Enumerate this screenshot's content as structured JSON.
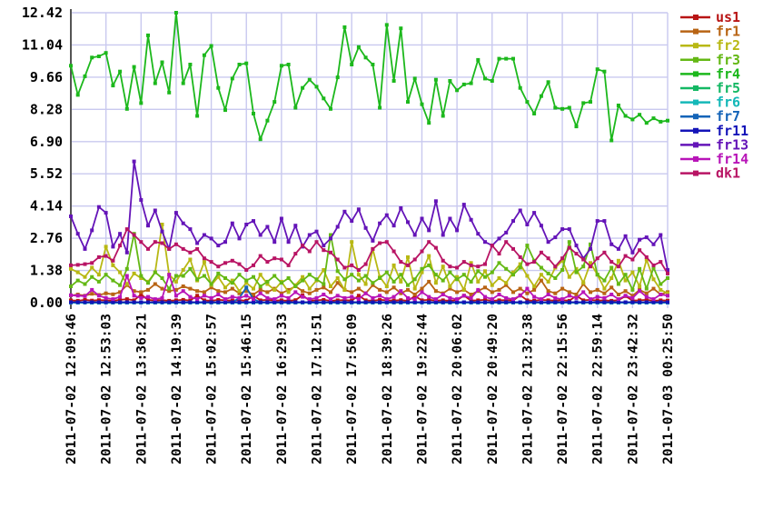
{
  "style": {
    "background": "#ffffff",
    "grid_color": "#c9c9ef",
    "axis_color": "#555555",
    "tick_label_color": "#000000"
  },
  "chart_data": {
    "type": "line",
    "title": "",
    "xlabel": "",
    "ylabel": "",
    "grid": true,
    "legend_position": "right",
    "ylim": [
      0,
      12.42
    ],
    "y_tick_labels": [
      "0.00",
      "1.38",
      "2.76",
      "4.14",
      "5.52",
      "6.90",
      "8.28",
      "9.66",
      "11.04",
      "12.42"
    ],
    "y_ticks": [
      0.0,
      1.38,
      2.76,
      4.14,
      5.52,
      6.9,
      8.28,
      9.66,
      11.04,
      12.42
    ],
    "points_per_series": 86,
    "tick_every_n_points": 5,
    "x_tick_labels": [
      "2011-07-02 12:09:46",
      "2011-07-02 12:53:03",
      "2011-07-02 13:36:21",
      "2011-07-02 14:19:39",
      "2011-07-02 15:02:57",
      "2011-07-02 15:46:15",
      "2011-07-02 16:29:33",
      "2011-07-02 17:12:51",
      "2011-07-02 17:56:09",
      "2011-07-02 18:39:26",
      "2011-07-02 19:22:44",
      "2011-07-02 20:06:02",
      "2011-07-02 20:49:20",
      "2011-07-02 21:32:38",
      "2011-07-02 22:15:56",
      "2011-07-02 22:59:14",
      "2011-07-02 23:42:32",
      "2011-07-03 00:25:50"
    ],
    "series": [
      {
        "name": "us1",
        "color": "#b81414",
        "values": [
          0.1,
          0.08,
          0.12,
          0.09,
          0.11,
          0.1,
          0.08,
          0.12,
          0.15,
          0.1,
          0.35,
          0.12,
          0.09,
          0.11,
          0.08,
          0.1,
          0.12,
          0.09,
          0.3,
          0.1,
          0.08,
          0.12,
          0.1,
          0.09,
          0.11,
          0.08,
          0.3,
          0.1,
          0.12,
          0.09,
          0.1,
          0.08,
          0.11,
          0.32,
          0.09,
          0.1,
          0.12,
          0.08,
          0.1,
          0.11,
          0.09,
          0.3,
          0.1,
          0.08,
          0.12,
          0.1,
          0.09,
          0.11,
          0.08,
          0.28,
          0.1,
          0.12,
          0.09,
          0.1,
          0.08,
          0.11,
          0.3,
          0.09,
          0.1,
          0.12,
          0.08,
          0.1,
          0.11,
          0.09,
          0.32,
          0.1,
          0.08,
          0.12,
          0.1,
          0.09,
          0.11,
          0.08,
          0.3,
          0.1,
          0.12,
          0.09,
          0.1,
          0.08,
          0.11,
          0.28,
          0.09,
          0.1,
          0.12,
          0.08,
          0.1,
          0.09
        ]
      },
      {
        "name": "fr1",
        "color": "#b86414",
        "values": [
          0.31,
          0.35,
          0.3,
          0.38,
          0.33,
          0.4,
          0.36,
          0.45,
          0.75,
          0.5,
          0.45,
          0.55,
          0.8,
          0.6,
          0.5,
          0.55,
          0.7,
          0.6,
          0.5,
          0.45,
          0.65,
          0.5,
          0.45,
          0.6,
          0.4,
          0.5,
          0.35,
          0.55,
          0.45,
          0.6,
          0.4,
          0.55,
          0.7,
          0.5,
          0.4,
          0.55,
          0.65,
          0.45,
          0.85,
          0.55,
          0.45,
          0.6,
          0.4,
          0.75,
          0.55,
          0.45,
          0.65,
          0.4,
          0.55,
          0.35,
          0.6,
          0.9,
          0.5,
          0.4,
          0.6,
          0.45,
          0.55,
          0.35,
          0.5,
          0.65,
          0.45,
          0.55,
          0.75,
          0.45,
          0.6,
          0.4,
          0.55,
          0.95,
          0.5,
          0.4,
          0.6,
          0.45,
          0.35,
          0.8,
          0.45,
          0.55,
          0.4,
          0.65,
          0.35,
          0.5,
          0.3,
          0.55,
          0.4,
          0.6,
          0.35,
          0.45
        ]
      },
      {
        "name": "fr2",
        "color": "#b8b814",
        "values": [
          1.45,
          1.3,
          1.1,
          1.5,
          1.2,
          2.4,
          1.6,
          1.3,
          0.8,
          1.25,
          1.05,
          0.9,
          1.3,
          3.35,
          1.2,
          0.9,
          1.4,
          1.85,
          0.95,
          1.75,
          0.75,
          1.1,
          0.65,
          0.95,
          0.5,
          0.85,
          0.6,
          1.2,
          0.8,
          0.55,
          0.9,
          0.45,
          0.75,
          1.1,
          0.6,
          0.95,
          1.4,
          0.7,
          1.05,
          0.55,
          2.6,
          1.2,
          0.8,
          2.3,
          1.1,
          0.7,
          1.6,
          0.9,
          1.95,
          0.6,
          1.3,
          2.0,
          0.85,
          1.55,
          0.7,
          1.1,
          0.55,
          1.7,
          0.9,
          1.35,
          0.75,
          1.05,
          0.85,
          1.3,
          1.65,
          1.15,
          0.7,
          1.2,
          0.9,
          1.5,
          1.8,
          1.1,
          1.45,
          0.85,
          1.7,
          1.2,
          0.6,
          1.05,
          1.8,
          0.95,
          1.3,
          0.7,
          1.85,
          1.0,
          0.55,
          0.4
        ]
      },
      {
        "name": "fr3",
        "color": "#64b814",
        "values": [
          0.7,
          0.95,
          0.8,
          1.1,
          0.9,
          1.2,
          0.95,
          0.75,
          1.45,
          2.95,
          1.15,
          0.85,
          1.3,
          1.05,
          0.6,
          1.15,
          1.15,
          1.45,
          1.0,
          1.15,
          0.8,
          1.25,
          1.05,
          0.85,
          1.2,
          0.95,
          1.1,
          0.7,
          0.9,
          1.15,
          0.85,
          1.05,
          0.7,
          0.95,
          1.2,
          1.0,
          0.8,
          2.9,
          1.35,
          1.0,
          1.2,
          0.95,
          1.15,
          0.85,
          1.05,
          1.3,
          0.9,
          1.2,
          0.75,
          1.0,
          1.45,
          1.6,
          1.2,
          0.95,
          1.3,
          1.0,
          1.2,
          0.9,
          1.35,
          1.1,
          1.3,
          1.7,
          1.45,
          1.2,
          1.5,
          2.45,
          1.8,
          1.5,
          1.25,
          1.05,
          1.4,
          2.6,
          1.3,
          1.55,
          2.5,
          1.2,
          0.95,
          1.5,
          0.8,
          1.2,
          0.55,
          1.45,
          0.6,
          1.5,
          0.8,
          1.05
        ]
      },
      {
        "name": "fr4",
        "color": "#1cb81c",
        "values": [
          10.15,
          8.9,
          9.7,
          10.5,
          10.55,
          10.7,
          9.3,
          9.9,
          8.3,
          10.1,
          8.55,
          11.45,
          9.4,
          10.3,
          9.0,
          12.42,
          9.4,
          10.2,
          8.0,
          10.6,
          11.0,
          9.2,
          8.25,
          9.6,
          10.2,
          10.25,
          8.1,
          7.0,
          7.8,
          8.6,
          10.15,
          10.2,
          8.35,
          9.2,
          9.55,
          9.25,
          8.75,
          8.3,
          9.65,
          11.8,
          10.2,
          10.95,
          10.5,
          10.2,
          8.35,
          11.9,
          9.5,
          11.75,
          8.6,
          9.6,
          8.5,
          7.7,
          9.55,
          8.0,
          9.5,
          9.1,
          9.35,
          9.4,
          10.4,
          9.6,
          9.5,
          10.45,
          10.45,
          10.45,
          9.2,
          8.6,
          8.1,
          8.85,
          9.45,
          8.35,
          8.3,
          8.35,
          7.55,
          8.55,
          8.6,
          10.0,
          9.9,
          6.95,
          8.45,
          8.0,
          7.85,
          8.05,
          7.7,
          7.9,
          7.75,
          7.8
        ]
      },
      {
        "name": "fr5",
        "color": "#14b864",
        "values": [
          0.0,
          0.0,
          0.0,
          0.0,
          0.0,
          0.0,
          0.0,
          0.0,
          0.0,
          0.0,
          0.0,
          0.0,
          0.0,
          0.0,
          0.0,
          0.0,
          0.0,
          0.0,
          0.0,
          0.0,
          0.0,
          0.0,
          0.0,
          0.0,
          0.0,
          0.0,
          0.0,
          0.0,
          0.0,
          0.0,
          0.0,
          0.0,
          0.0,
          0.0,
          0.0,
          0.0,
          0.0,
          0.0,
          0.0,
          0.0,
          0.0,
          0.0,
          0.0,
          0.0,
          0.0,
          0.0,
          0.0,
          0.0,
          0.0,
          0.0,
          0.0,
          0.0,
          0.0,
          0.0,
          0.0,
          0.0,
          0.0,
          0.0,
          0.0,
          0.0,
          0.0,
          0.0,
          0.0,
          0.0,
          0.0,
          0.0,
          0.0,
          0.0,
          0.0,
          0.0,
          0.0,
          0.0,
          0.0,
          0.0,
          0.0,
          0.0,
          0.0,
          0.0,
          0.0,
          0.0,
          0.0,
          0.0,
          0.0,
          0.0,
          0.0,
          0.0
        ]
      },
      {
        "name": "fr6",
        "color": "#14b8b8",
        "values": [
          0.0,
          0.0,
          0.0,
          0.0,
          0.0,
          0.0,
          0.0,
          0.0,
          0.0,
          0.0,
          0.0,
          0.0,
          0.0,
          0.0,
          0.0,
          0.0,
          0.0,
          0.0,
          0.0,
          0.0,
          0.0,
          0.0,
          0.0,
          0.0,
          0.0,
          0.0,
          0.0,
          0.0,
          0.0,
          0.0,
          0.0,
          0.0,
          0.0,
          0.0,
          0.0,
          0.0,
          0.0,
          0.0,
          0.0,
          0.0,
          0.0,
          0.0,
          0.0,
          0.0,
          0.0,
          0.0,
          0.0,
          0.0,
          0.0,
          0.0,
          0.0,
          0.0,
          0.0,
          0.0,
          0.0,
          0.0,
          0.0,
          0.0,
          0.0,
          0.0,
          0.0,
          0.0,
          0.0,
          0.0,
          0.0,
          0.0,
          0.0,
          0.0,
          0.0,
          0.0,
          0.0,
          0.0,
          0.0,
          0.0,
          0.0,
          0.0,
          0.0,
          0.0,
          0.0,
          0.0,
          0.0,
          0.0,
          0.0,
          0.0,
          0.0,
          0.0
        ]
      },
      {
        "name": "fr7",
        "color": "#1464b8",
        "values": [
          0.02,
          0.02,
          0.02,
          0.02,
          0.02,
          0.02,
          0.02,
          0.02,
          0.02,
          0.02,
          0.02,
          0.02,
          0.02,
          0.02,
          0.02,
          0.02,
          0.02,
          0.02,
          0.02,
          0.02,
          0.02,
          0.02,
          0.02,
          0.02,
          0.2,
          0.65,
          0.15,
          0.02,
          0.02,
          0.02,
          0.02,
          0.02,
          0.02,
          0.02,
          0.02,
          0.02,
          0.02,
          0.02,
          0.02,
          0.02,
          0.02,
          0.02,
          0.02,
          0.02,
          0.02,
          0.02,
          0.02,
          0.02,
          0.02,
          0.02,
          0.02,
          0.02,
          0.02,
          0.02,
          0.02,
          0.02,
          0.02,
          0.02,
          0.02,
          0.02,
          0.02,
          0.02,
          0.02,
          0.02,
          0.02,
          0.02,
          0.02,
          0.02,
          0.02,
          0.02,
          0.02,
          0.02,
          0.02,
          0.02,
          0.02,
          0.02,
          0.02,
          0.02,
          0.02,
          0.02,
          0.02,
          0.02,
          0.02,
          0.02,
          0.02,
          0.02
        ]
      },
      {
        "name": "fr11",
        "color": "#1414b8",
        "values": [
          0.02,
          0.02,
          0.02,
          0.02,
          0.02,
          0.02,
          0.02,
          0.02,
          0.02,
          0.02,
          0.02,
          0.02,
          0.02,
          0.02,
          0.02,
          0.02,
          0.02,
          0.02,
          0.02,
          0.02,
          0.02,
          0.02,
          0.02,
          0.02,
          0.02,
          0.02,
          0.02,
          0.02,
          0.02,
          0.02,
          0.02,
          0.02,
          0.02,
          0.02,
          0.02,
          0.02,
          0.02,
          0.02,
          0.02,
          0.02,
          0.02,
          0.02,
          0.02,
          0.02,
          0.02,
          0.02,
          0.02,
          0.02,
          0.02,
          0.02,
          0.02,
          0.02,
          0.02,
          0.02,
          0.02,
          0.02,
          0.02,
          0.02,
          0.02,
          0.02,
          0.02,
          0.02,
          0.02,
          0.02,
          0.02,
          0.02,
          0.02,
          0.02,
          0.02,
          0.02,
          0.02,
          0.02,
          0.02,
          0.02,
          0.02,
          0.02,
          0.02,
          0.02,
          0.02,
          0.02,
          0.02,
          0.02,
          0.02,
          0.02,
          0.02,
          0.02
        ]
      },
      {
        "name": "fr13",
        "color": "#6414b8",
        "values": [
          3.7,
          2.95,
          2.3,
          3.1,
          4.1,
          3.85,
          2.4,
          2.95,
          2.15,
          6.05,
          4.4,
          3.3,
          3.95,
          3.05,
          2.3,
          3.85,
          3.4,
          3.15,
          2.55,
          2.9,
          2.75,
          2.45,
          2.6,
          3.4,
          2.75,
          3.35,
          3.5,
          2.9,
          3.25,
          2.6,
          3.6,
          2.6,
          3.3,
          2.4,
          2.9,
          3.05,
          2.45,
          2.75,
          3.25,
          3.9,
          3.5,
          4.0,
          3.2,
          2.65,
          3.4,
          3.75,
          3.3,
          4.05,
          3.45,
          2.9,
          3.6,
          3.1,
          4.35,
          2.9,
          3.6,
          3.1,
          4.2,
          3.55,
          2.95,
          2.6,
          2.45,
          2.75,
          3.0,
          3.5,
          3.95,
          3.35,
          3.85,
          3.3,
          2.6,
          2.8,
          3.15,
          3.15,
          2.45,
          1.9,
          2.3,
          3.5,
          3.5,
          2.5,
          2.3,
          2.85,
          2.15,
          2.7,
          2.8,
          2.5,
          2.9,
          1.4
        ]
      },
      {
        "name": "fr14",
        "color": "#b814b8",
        "values": [
          0.32,
          0.3,
          0.28,
          0.55,
          0.3,
          0.2,
          0.15,
          0.25,
          1.15,
          0.3,
          0.2,
          0.25,
          0.15,
          0.2,
          1.2,
          0.3,
          0.5,
          0.25,
          0.15,
          0.3,
          0.2,
          0.35,
          0.15,
          0.25,
          0.2,
          0.3,
          0.15,
          0.4,
          0.2,
          0.15,
          0.3,
          0.2,
          0.45,
          0.25,
          0.15,
          0.2,
          0.35,
          0.15,
          0.3,
          0.2,
          0.25,
          0.15,
          0.4,
          0.2,
          0.3,
          0.15,
          0.25,
          0.5,
          0.2,
          0.15,
          0.45,
          0.25,
          0.15,
          0.35,
          0.2,
          0.15,
          0.3,
          0.2,
          0.55,
          0.25,
          0.15,
          0.35,
          0.2,
          0.15,
          0.3,
          0.6,
          0.25,
          0.15,
          0.35,
          0.2,
          0.15,
          0.3,
          0.2,
          0.45,
          0.15,
          0.25,
          0.2,
          0.35,
          0.15,
          0.3,
          0.2,
          0.5,
          0.25,
          0.15,
          0.35,
          0.3
        ]
      },
      {
        "name": "dk1",
        "color": "#b81464",
        "values": [
          1.6,
          1.62,
          1.65,
          1.7,
          1.95,
          2.0,
          1.8,
          2.45,
          3.15,
          2.9,
          2.6,
          2.3,
          2.6,
          2.55,
          2.3,
          2.5,
          2.3,
          2.15,
          2.3,
          1.9,
          1.75,
          1.55,
          1.7,
          1.8,
          1.65,
          1.4,
          1.6,
          2.0,
          1.75,
          1.9,
          1.85,
          1.6,
          2.1,
          2.45,
          2.2,
          2.6,
          2.25,
          2.15,
          1.85,
          1.5,
          1.6,
          1.4,
          1.65,
          2.3,
          2.55,
          2.6,
          2.2,
          1.75,
          1.6,
          1.85,
          2.2,
          2.6,
          2.35,
          1.8,
          1.55,
          1.5,
          1.75,
          1.6,
          1.55,
          1.65,
          2.45,
          2.1,
          2.6,
          2.3,
          1.95,
          1.65,
          1.75,
          2.15,
          1.9,
          1.55,
          1.9,
          2.35,
          2.1,
          1.85,
          1.55,
          1.9,
          2.15,
          1.75,
          1.55,
          2.0,
          1.85,
          2.25,
          1.95,
          1.6,
          1.75,
          1.25
        ]
      }
    ]
  }
}
